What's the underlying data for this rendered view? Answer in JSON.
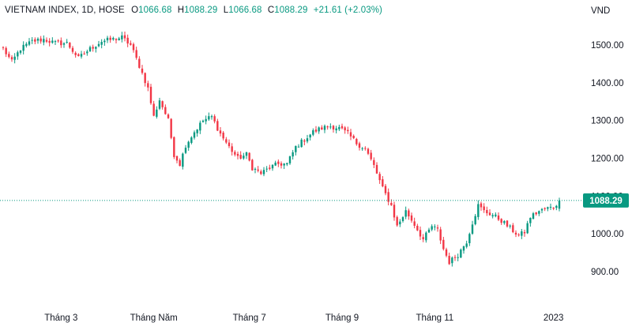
{
  "legend": {
    "symbol": "VIETNAM INDEX, 1D, HOSE",
    "o_label": "O",
    "o_value": "1066.68",
    "h_label": "H",
    "h_value": "1088.29",
    "l_label": "L",
    "l_value": "1066.68",
    "c_label": "C",
    "c_value": "1088.29",
    "change": "+21.61 (+2.03%)"
  },
  "unit": "VND",
  "last_price_label": "1088.29",
  "colors": {
    "up": "#089981",
    "down": "#f23645",
    "axis_text": "#131722",
    "last_price_bg": "#089981"
  },
  "chart_data": {
    "type": "candlestick",
    "title": "",
    "symbol": "VIETNAM INDEX",
    "interval": "1D",
    "exchange": "HOSE",
    "ylim": [
      870,
      1540
    ],
    "y_ticks": [
      {
        "value": 900,
        "label": "900.00"
      },
      {
        "value": 1000,
        "label": "1000.00"
      },
      {
        "value": 1100,
        "label": "1100.00"
      },
      {
        "value": 1200,
        "label": "1200.00"
      },
      {
        "value": 1300,
        "label": "1300.00"
      },
      {
        "value": 1400,
        "label": "1400.00"
      },
      {
        "value": 1500,
        "label": "1500.00"
      }
    ],
    "x_ticks": [
      {
        "index": 20,
        "label": "Tháng 3"
      },
      {
        "index": 52,
        "label": "Tháng Năm"
      },
      {
        "index": 85,
        "label": "Tháng 7"
      },
      {
        "index": 117,
        "label": "Tháng 9"
      },
      {
        "index": 149,
        "label": "Tháng 11"
      },
      {
        "index": 190,
        "label": "2023"
      }
    ],
    "last_price": 1088.29,
    "grid": false,
    "close_path": [
      [
        0,
        1490
      ],
      [
        3,
        1455
      ],
      [
        6,
        1490
      ],
      [
        10,
        1510
      ],
      [
        14,
        1515
      ],
      [
        18,
        1505
      ],
      [
        22,
        1505
      ],
      [
        26,
        1465
      ],
      [
        30,
        1490
      ],
      [
        34,
        1510
      ],
      [
        38,
        1515
      ],
      [
        41,
        1520
      ],
      [
        44,
        1500
      ],
      [
        47,
        1445
      ],
      [
        50,
        1385
      ],
      [
        52,
        1310
      ],
      [
        54,
        1355
      ],
      [
        57,
        1300
      ],
      [
        59,
        1210
      ],
      [
        61,
        1185
      ],
      [
        63,
        1235
      ],
      [
        66,
        1270
      ],
      [
        69,
        1300
      ],
      [
        72,
        1310
      ],
      [
        75,
        1265
      ],
      [
        78,
        1230
      ],
      [
        81,
        1200
      ],
      [
        84,
        1210
      ],
      [
        86,
        1175
      ],
      [
        89,
        1160
      ],
      [
        92,
        1175
      ],
      [
        95,
        1185
      ],
      [
        98,
        1185
      ],
      [
        101,
        1230
      ],
      [
        104,
        1250
      ],
      [
        107,
        1270
      ],
      [
        110,
        1280
      ],
      [
        113,
        1285
      ],
      [
        116,
        1280
      ],
      [
        119,
        1265
      ],
      [
        122,
        1240
      ],
      [
        125,
        1225
      ],
      [
        128,
        1180
      ],
      [
        131,
        1120
      ],
      [
        134,
        1075
      ],
      [
        136,
        1020
      ],
      [
        139,
        1060
      ],
      [
        142,
        1025
      ],
      [
        145,
        985
      ],
      [
        148,
        1020
      ],
      [
        150,
        1010
      ],
      [
        152,
        960
      ],
      [
        154,
        925
      ],
      [
        157,
        945
      ],
      [
        160,
        980
      ],
      [
        162,
        1030
      ],
      [
        164,
        1075
      ],
      [
        166,
        1060
      ],
      [
        169,
        1050
      ],
      [
        172,
        1035
      ],
      [
        175,
        1015
      ],
      [
        178,
        995
      ],
      [
        180,
        1005
      ],
      [
        182,
        1045
      ],
      [
        185,
        1060
      ],
      [
        188,
        1068
      ],
      [
        190,
        1070
      ],
      [
        192,
        1088.29
      ]
    ],
    "bar_count": 193
  }
}
